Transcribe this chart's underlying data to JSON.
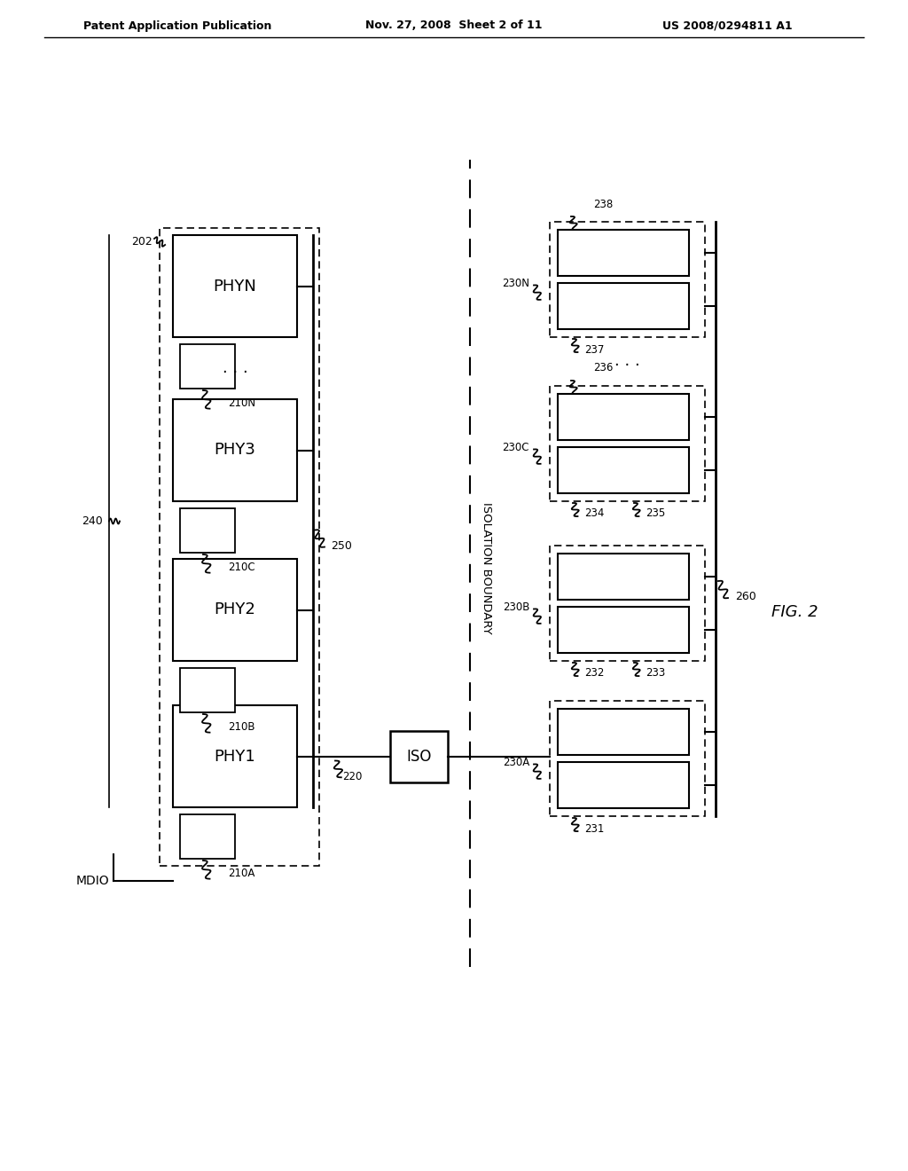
{
  "bg_color": "#ffffff",
  "header_left": "Patent Application Publication",
  "header_mid": "Nov. 27, 2008  Sheet 2 of 11",
  "header_right": "US 2008/0294811 A1",
  "fig_label": "FIG. 2"
}
